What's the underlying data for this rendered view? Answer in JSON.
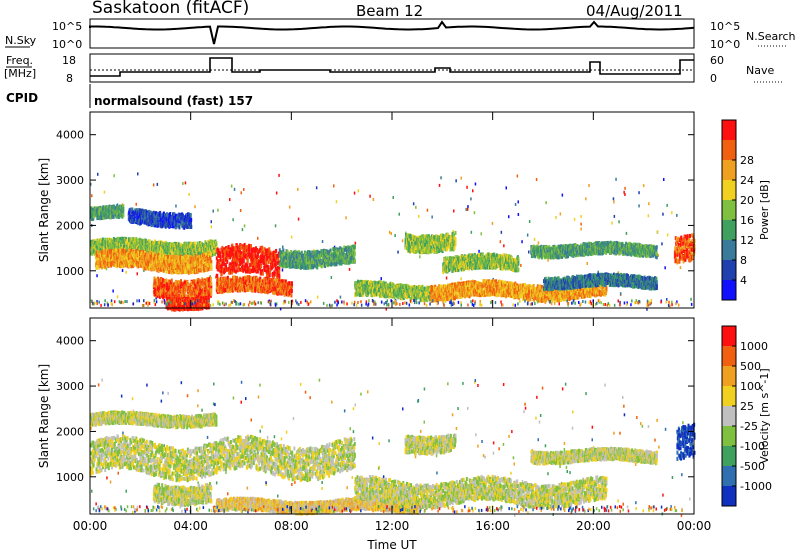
{
  "header": {
    "station": "Saskatoon (fitACF)",
    "beam": "Beam 12",
    "date": "04/Aug/2011",
    "cpid_label": "CPID",
    "cpid_value": "normalsound (fast) 157"
  },
  "panels": {
    "nsky": {
      "label": "N.Sky",
      "ticks": [
        "10^5",
        "10^0"
      ]
    },
    "nsearch": {
      "label": "N.Search",
      "ticks": [
        "10^5",
        "10^0"
      ]
    },
    "freq": {
      "label_line1": "Freq.",
      "label_line2": "[MHz]",
      "ticks": [
        18,
        8
      ]
    },
    "nave": {
      "label": "Nave",
      "ticks": [
        60,
        0
      ]
    }
  },
  "chart_data": [
    {
      "type": "heatmap",
      "name": "power",
      "ylabel": "Slant Range [km]",
      "xlabel": "",
      "ylim": [
        180,
        4500
      ],
      "yticks": [
        1000,
        2000,
        3000,
        4000
      ],
      "xticks": [
        "00:00",
        "04:00",
        "08:00",
        "12:00",
        "16:00",
        "20:00",
        "00:00"
      ],
      "colorbar": {
        "label": "Power [dB]",
        "ticks": [
          "4",
          "8",
          "12",
          "16",
          "20",
          "24",
          "28"
        ],
        "colors": [
          "#1010ff",
          "#2040b0",
          "#3a7a9a",
          "#40a060",
          "#80c040",
          "#f0d020",
          "#f0a020",
          "#f06010",
          "#ff1010"
        ]
      },
      "bands": [
        {
          "t0": 0.0,
          "t1": 1.3,
          "r": 2300,
          "w": 120,
          "level": 3
        },
        {
          "t0": 1.5,
          "t1": 4.0,
          "r": 2200,
          "w": 150,
          "level": 1
        },
        {
          "t0": 0.0,
          "t1": 5.0,
          "r": 1550,
          "w": 150,
          "level": 4
        },
        {
          "t0": 0.2,
          "t1": 4.8,
          "r": 1250,
          "w": 180,
          "level": 6
        },
        {
          "t0": 2.5,
          "t1": 4.8,
          "r": 700,
          "w": 200,
          "level": 7
        },
        {
          "t0": 3.0,
          "t1": 4.7,
          "r": 350,
          "w": 120,
          "level": 8
        },
        {
          "t0": 5.0,
          "t1": 7.5,
          "r": 1200,
          "w": 300,
          "level": 8
        },
        {
          "t0": 5.0,
          "t1": 8.0,
          "r": 700,
          "w": 150,
          "level": 7
        },
        {
          "t0": 7.5,
          "t1": 10.5,
          "r": 1350,
          "w": 180,
          "level": 3
        },
        {
          "t0": 10.5,
          "t1": 13.5,
          "r": 600,
          "w": 150,
          "level": 4
        },
        {
          "t0": 12.5,
          "t1": 14.5,
          "r": 1700,
          "w": 180,
          "level": 4
        },
        {
          "t0": 14.0,
          "t1": 17.0,
          "r": 1200,
          "w": 150,
          "level": 4
        },
        {
          "t0": 13.5,
          "t1": 20.5,
          "r": 600,
          "w": 160,
          "level": 6
        },
        {
          "t0": 17.5,
          "t1": 22.5,
          "r": 1500,
          "w": 120,
          "level": 3
        },
        {
          "t0": 18.0,
          "t1": 22.5,
          "r": 800,
          "w": 120,
          "level": 2
        },
        {
          "t0": 23.2,
          "t1": 24.0,
          "r": 1600,
          "w": 280,
          "level": 7
        }
      ]
    },
    {
      "type": "heatmap",
      "name": "velocity",
      "ylabel": "Slant Range [km]",
      "xlabel": "Time UT",
      "ylim": [
        180,
        4500
      ],
      "yticks": [
        1000,
        2000,
        3000,
        4000
      ],
      "xticks": [
        "00:00",
        "04:00",
        "08:00",
        "12:00",
        "16:00",
        "20:00",
        "00:00"
      ],
      "colorbar": {
        "label": "Velocity [m s^-1]",
        "ticks": [
          "1000",
          "500",
          "100",
          "25",
          "-25",
          "-100",
          "-500",
          "-1000"
        ],
        "colors": [
          "#1030c0",
          "#3070b0",
          "#40a060",
          "#80c040",
          "#c0c0c0",
          "#f0d020",
          "#f0a020",
          "#f06010",
          "#ff1010"
        ]
      },
      "bands": [
        {
          "t0": 0.0,
          "t1": 5.0,
          "r": 2300,
          "w": 120,
          "level": 4
        },
        {
          "t0": 0.0,
          "t1": 10.5,
          "r": 1450,
          "w": 350,
          "level": 4
        },
        {
          "t0": 2.5,
          "t1": 4.8,
          "r": 700,
          "w": 200,
          "level": 4
        },
        {
          "t0": 5.0,
          "t1": 13.0,
          "r": 400,
          "w": 120,
          "level": 5
        },
        {
          "t0": 10.5,
          "t1": 20.5,
          "r": 700,
          "w": 250,
          "level": 4
        },
        {
          "t0": 12.5,
          "t1": 14.5,
          "r": 1800,
          "w": 180,
          "level": 4
        },
        {
          "t0": 17.5,
          "t1": 22.5,
          "r": 1500,
          "w": 120,
          "level": 4
        },
        {
          "t0": 23.3,
          "t1": 24.0,
          "r": 1900,
          "w": 350,
          "level": 0
        }
      ]
    }
  ]
}
